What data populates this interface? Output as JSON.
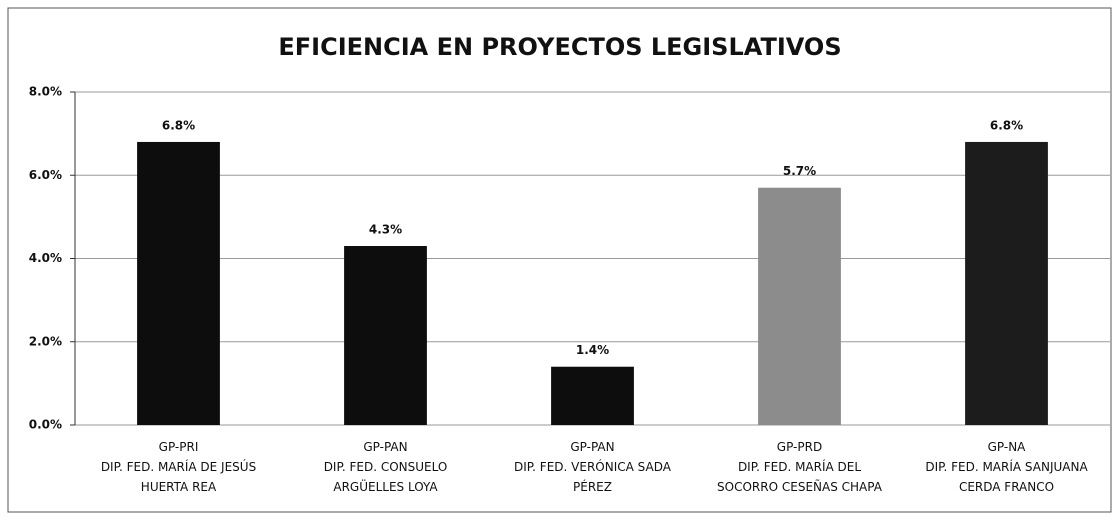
{
  "chart_data": {
    "type": "bar",
    "title": "EFICIENCIA EN PROYECTOS LEGISLATIVOS",
    "categories": [
      [
        "GP-PRI",
        "DIP. FED. MARÍA DE JESÚS",
        "HUERTA REA"
      ],
      [
        "GP-PAN",
        "DIP. FED. CONSUELO",
        "ARGÜELLES LOYA"
      ],
      [
        "GP-PAN",
        "DIP. FED. VERÓNICA SADA",
        "PÉREZ"
      ],
      [
        "GP-PRD",
        "DIP. FED. MARÍA DEL",
        "SOCORRO CESEÑAS CHAPA"
      ],
      [
        "GP-NA",
        "DIP. FED. MARÍA SANJUANA",
        "CERDA FRANCO"
      ]
    ],
    "values": [
      6.8,
      4.3,
      1.4,
      5.7,
      6.8
    ],
    "value_labels": [
      "6.8%",
      "4.3%",
      "1.4%",
      "5.7%",
      "6.8%"
    ],
    "colors": [
      "#0d0d0d",
      "#0d0d0d",
      "#0d0d0d",
      "#8c8c8c",
      "#1c1c1c"
    ],
    "ylim": [
      0,
      8
    ],
    "yticks": [
      {
        "value": 0,
        "label": "0.0%"
      },
      {
        "value": 2,
        "label": "2.0%"
      },
      {
        "value": 4,
        "label": "4.0%"
      },
      {
        "value": 6,
        "label": "6.0%"
      },
      {
        "value": 8,
        "label": "8.0%"
      }
    ],
    "grid": true
  }
}
